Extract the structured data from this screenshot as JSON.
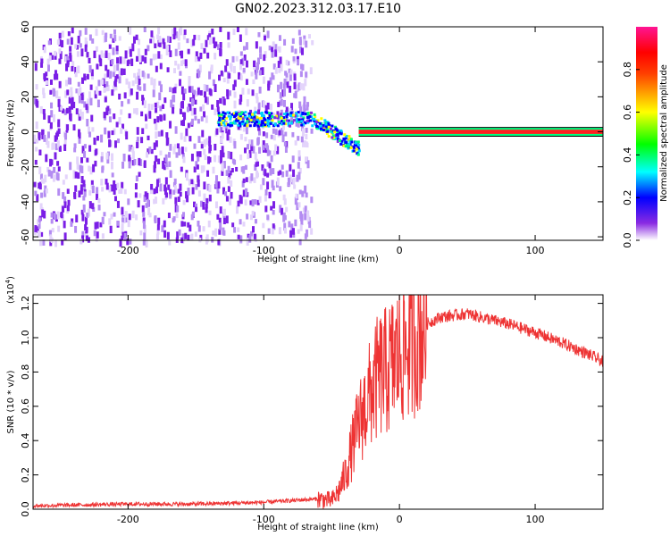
{
  "title": "GN02.2023.312.03.17.E10",
  "chart_data": [
    {
      "type": "heatmap",
      "name": "spectrogram",
      "xlabel": "Height of straight line (km)",
      "ylabel": "Frequency (Hz)",
      "xlim": [
        -270,
        150
      ],
      "ylim": [
        -62,
        60
      ],
      "xticks": [
        "-200",
        "-100",
        "0",
        "100"
      ],
      "yticks": [
        "60",
        "40",
        "20",
        "0",
        "-20",
        "-40",
        "-60"
      ],
      "colorbar": {
        "label": "Normalized spectral amplitude",
        "range": [
          0,
          1
        ],
        "ticks": [
          "0.0",
          "0.2",
          "0.4",
          "0.6",
          "0.8"
        ],
        "colormap": [
          "#ffffff",
          "#8a2be2",
          "#0000ff",
          "#00ffff",
          "#00ff00",
          "#ffff00",
          "#ff0000",
          "#ff1493"
        ]
      },
      "features": {
        "noise_region_km": [
          -270,
          -65
        ],
        "tone_frequency_hz": 0,
        "tone_start_km": -35,
        "signal_band_km": [
          -135,
          -30
        ]
      }
    },
    {
      "type": "line",
      "name": "snr",
      "xlabel": "Height of straight line (km)",
      "ylabel": "SNR (10 * v/v)",
      "yscale_note": "(x10",
      "yscale_exp": "4",
      "xlim": [
        -270,
        150
      ],
      "ylim": [
        0,
        1.25
      ],
      "xticks": [
        "-200",
        "-100",
        "0",
        "100"
      ],
      "yticks": [
        "0.0",
        "0.2",
        "0.4",
        "0.6",
        "0.8",
        "1.0",
        "1.2"
      ],
      "color": "#ee3333",
      "x": [
        -270,
        -200,
        -150,
        -100,
        -80,
        -60,
        -50,
        -45,
        -40,
        -35,
        -30,
        -25,
        -20,
        -15,
        -10,
        -5,
        0,
        5,
        10,
        15,
        20,
        25,
        30,
        40,
        50,
        60,
        80,
        100,
        120,
        140,
        150
      ],
      "y": [
        0.02,
        0.03,
        0.03,
        0.04,
        0.05,
        0.06,
        0.05,
        0.1,
        0.2,
        0.35,
        0.5,
        0.6,
        0.7,
        0.78,
        0.8,
        0.85,
        0.9,
        0.95,
        1.0,
        1.05,
        1.08,
        1.1,
        1.12,
        1.13,
        1.14,
        1.12,
        1.08,
        1.03,
        0.97,
        0.9,
        0.86
      ]
    }
  ]
}
